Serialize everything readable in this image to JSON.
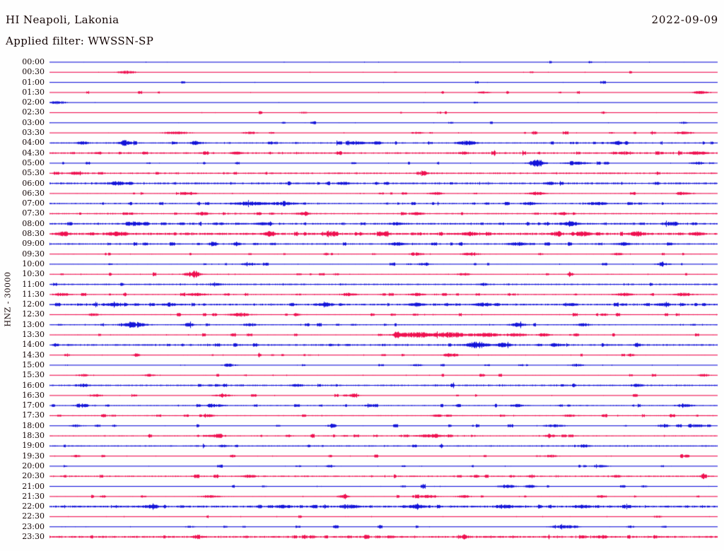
{
  "header": {
    "title": "HI Neapoli, Lakonia",
    "filter": "Applied filter: WWSSN-SP",
    "date": "2022-09-09"
  },
  "chart_data": {
    "type": "line",
    "subtype": "helicorder-dayplot",
    "title": "HI Neapoli, Lakonia",
    "applied_filter": "WWSSN-SP",
    "date": "2022-09-09",
    "channel_label": "HNZ - 30000",
    "minutes_per_line": 30,
    "rows_per_day": 48,
    "legend_position": "none",
    "grid": false,
    "trace_colors": [
      "#1414d8",
      "#ee1050"
    ],
    "text_color": "#150505",
    "rows": [
      {
        "time": "00:00",
        "noise": 0.45,
        "busy": 0.02,
        "events": [
          [
            0.81,
            0.004,
            1.2
          ]
        ]
      },
      {
        "time": "00:30",
        "noise": 0.45,
        "busy": 0.02,
        "events": [
          [
            0.115,
            0.014,
            1.7
          ]
        ]
      },
      {
        "time": "01:00",
        "noise": 0.4,
        "busy": 0.015,
        "events": []
      },
      {
        "time": "01:30",
        "noise": 0.45,
        "busy": 0.03,
        "events": [
          [
            0.65,
            0.01,
            1.2
          ],
          [
            0.975,
            0.012,
            1.9
          ]
        ]
      },
      {
        "time": "02:00",
        "noise": 0.4,
        "busy": 0.015,
        "events": [
          [
            0.012,
            0.012,
            1.9
          ]
        ]
      },
      {
        "time": "02:30",
        "noise": 0.45,
        "busy": 0.03,
        "events": [
          [
            0.38,
            0.005,
            1.2
          ],
          [
            0.83,
            0.004,
            1.5
          ]
        ]
      },
      {
        "time": "03:00",
        "noise": 0.4,
        "busy": 0.02,
        "events": [
          [
            0.95,
            0.006,
            1.3
          ]
        ]
      },
      {
        "time": "03:30",
        "noise": 0.5,
        "busy": 0.06,
        "events": [
          [
            0.19,
            0.018,
            1.5
          ],
          [
            0.3,
            0.01,
            1.3
          ],
          [
            0.55,
            0.008,
            1.3
          ],
          [
            0.95,
            0.014,
            1.5
          ]
        ]
      },
      {
        "time": "04:00",
        "noise": 0.8,
        "busy": 0.12,
        "events": [
          [
            0.05,
            0.008,
            1.8
          ],
          [
            0.115,
            0.012,
            2.2
          ],
          [
            0.22,
            0.01,
            1.8
          ],
          [
            0.46,
            0.012,
            2.0
          ],
          [
            0.49,
            0.008,
            1.8
          ],
          [
            0.625,
            0.014,
            2.6
          ],
          [
            0.85,
            0.012,
            1.6
          ]
        ]
      },
      {
        "time": "04:30",
        "noise": 0.95,
        "busy": 0.08,
        "events": [
          [
            0.28,
            0.008,
            1.5
          ],
          [
            0.62,
            0.006,
            1.4
          ],
          [
            0.86,
            0.01,
            1.5
          ],
          [
            0.97,
            0.012,
            1.8
          ]
        ]
      },
      {
        "time": "05:00",
        "noise": 0.5,
        "busy": 0.06,
        "events": [
          [
            0.73,
            0.011,
            5.0
          ],
          [
            0.79,
            0.02,
            1.6
          ],
          [
            0.97,
            0.01,
            1.7
          ]
        ]
      },
      {
        "time": "05:30",
        "noise": 0.95,
        "busy": 0.06,
        "events": [
          [
            0.04,
            0.01,
            1.5
          ],
          [
            0.56,
            0.008,
            1.3
          ]
        ]
      },
      {
        "time": "06:00",
        "noise": 1.1,
        "busy": 0.05,
        "events": [
          [
            0.1,
            0.012,
            2.3
          ],
          [
            0.44,
            0.008,
            1.4
          ],
          [
            0.75,
            0.008,
            1.3
          ]
        ]
      },
      {
        "time": "06:30",
        "noise": 0.6,
        "busy": 0.08,
        "events": [
          [
            0.21,
            0.008,
            1.8
          ],
          [
            0.58,
            0.01,
            1.6
          ],
          [
            0.73,
            0.012,
            1.9
          ],
          [
            0.95,
            0.01,
            1.6
          ]
        ]
      },
      {
        "time": "07:00",
        "noise": 0.8,
        "busy": 0.1,
        "events": [
          [
            0.3,
            0.024,
            2.1
          ],
          [
            0.35,
            0.018,
            1.9
          ],
          [
            0.72,
            0.01,
            1.5
          ],
          [
            0.82,
            0.014,
            1.7
          ]
        ]
      },
      {
        "time": "07:30",
        "noise": 0.8,
        "busy": 0.1,
        "events": [
          [
            0.23,
            0.008,
            1.9
          ],
          [
            0.38,
            0.01,
            1.5
          ],
          [
            0.55,
            0.01,
            1.5
          ],
          [
            0.77,
            0.006,
            2.1
          ]
        ]
      },
      {
        "time": "08:00",
        "noise": 1.0,
        "busy": 0.14,
        "events": [
          [
            0.13,
            0.01,
            1.8
          ],
          [
            0.32,
            0.008,
            1.6
          ],
          [
            0.52,
            0.01,
            1.6
          ],
          [
            0.78,
            0.014,
            2.1
          ],
          [
            0.93,
            0.01,
            2.2
          ]
        ]
      },
      {
        "time": "08:30",
        "noise": 1.3,
        "busy": 0.18,
        "events": [
          [
            0.02,
            0.01,
            2.2
          ],
          [
            0.1,
            0.012,
            2.4
          ],
          [
            0.33,
            0.005,
            3.6
          ],
          [
            0.42,
            0.01,
            2.2
          ],
          [
            0.5,
            0.008,
            2.0
          ],
          [
            0.63,
            0.01,
            2.2
          ],
          [
            0.76,
            0.008,
            2.4
          ],
          [
            0.8,
            0.01,
            3.0
          ],
          [
            0.88,
            0.01,
            2.8
          ],
          [
            0.97,
            0.008,
            2.0
          ]
        ]
      },
      {
        "time": "09:00",
        "noise": 0.9,
        "busy": 0.12,
        "events": [
          [
            0.245,
            0.005,
            3.6
          ],
          [
            0.28,
            0.005,
            2.6
          ],
          [
            0.52,
            0.01,
            1.8
          ],
          [
            0.7,
            0.012,
            2.0
          ],
          [
            0.86,
            0.01,
            1.8
          ]
        ]
      },
      {
        "time": "09:30",
        "noise": 0.55,
        "busy": 0.06,
        "events": [
          [
            0.55,
            0.01,
            1.6
          ],
          [
            0.63,
            0.012,
            1.9
          ],
          [
            0.85,
            0.008,
            1.4
          ]
        ]
      },
      {
        "time": "10:00",
        "noise": 0.55,
        "busy": 0.08,
        "events": [
          [
            0.3,
            0.014,
            1.5
          ],
          [
            0.56,
            0.01,
            1.4
          ],
          [
            0.92,
            0.01,
            1.4
          ]
        ]
      },
      {
        "time": "10:30",
        "noise": 0.6,
        "busy": 0.08,
        "events": [
          [
            0.215,
            0.011,
            3.6
          ],
          [
            0.62,
            0.008,
            1.6
          ],
          [
            0.78,
            0.004,
            2.3
          ]
        ]
      },
      {
        "time": "11:00",
        "noise": 0.9,
        "busy": 0.04,
        "events": [
          [
            0.25,
            0.008,
            1.4
          ],
          [
            0.65,
            0.006,
            1.3
          ]
        ]
      },
      {
        "time": "11:30",
        "noise": 0.7,
        "busy": 0.1,
        "events": [
          [
            0.02,
            0.01,
            1.8
          ],
          [
            0.22,
            0.014,
            1.8
          ],
          [
            0.45,
            0.01,
            1.7
          ],
          [
            0.55,
            0.01,
            1.6
          ],
          [
            0.86,
            0.012,
            2.0
          ],
          [
            0.95,
            0.012,
            1.9
          ]
        ]
      },
      {
        "time": "12:00",
        "noise": 1.05,
        "busy": 0.16,
        "events": [
          [
            0.1,
            0.014,
            1.8
          ],
          [
            0.18,
            0.01,
            1.6
          ],
          [
            0.41,
            0.012,
            1.8
          ],
          [
            0.55,
            0.01,
            1.8
          ],
          [
            0.65,
            0.012,
            1.8
          ],
          [
            0.78,
            0.01,
            1.6
          ],
          [
            0.92,
            0.01,
            1.6
          ]
        ]
      },
      {
        "time": "12:30",
        "noise": 0.6,
        "busy": 0.08,
        "events": [
          [
            0.065,
            0.008,
            1.5
          ],
          [
            0.285,
            0.014,
            2.3
          ],
          [
            0.37,
            0.004,
            2.2
          ],
          [
            0.83,
            0.006,
            1.4
          ]
        ]
      },
      {
        "time": "13:00",
        "noise": 0.7,
        "busy": 0.1,
        "events": [
          [
            0.125,
            0.017,
            2.9
          ],
          [
            0.21,
            0.008,
            1.6
          ],
          [
            0.3,
            0.01,
            1.8
          ],
          [
            0.7,
            0.012,
            1.8
          ],
          [
            0.8,
            0.01,
            1.6
          ]
        ]
      },
      {
        "time": "13:30",
        "noise": 0.6,
        "busy": 0.08,
        "events": [
          [
            0.52,
            0.004,
            4.2
          ],
          [
            0.55,
            0.028,
            3.3
          ],
          [
            0.6,
            0.024,
            3.0
          ],
          [
            0.655,
            0.018,
            2.6
          ],
          [
            0.7,
            0.014,
            2.0
          ],
          [
            0.74,
            0.01,
            1.8
          ]
        ]
      },
      {
        "time": "14:00",
        "noise": 1.0,
        "busy": 0.08,
        "events": [
          [
            0.64,
            0.014,
            4.0
          ],
          [
            0.68,
            0.01,
            2.3
          ],
          [
            0.76,
            0.008,
            1.6
          ],
          [
            0.88,
            0.004,
            2.1
          ]
        ]
      },
      {
        "time": "14:30",
        "noise": 0.55,
        "busy": 0.08,
        "events": [
          [
            0.13,
            0.005,
            1.9
          ],
          [
            0.6,
            0.01,
            1.4
          ],
          [
            0.87,
            0.006,
            1.4
          ]
        ]
      },
      {
        "time": "15:00",
        "noise": 0.5,
        "busy": 0.05,
        "events": [
          [
            0.27,
            0.01,
            1.4
          ],
          [
            0.55,
            0.008,
            1.3
          ],
          [
            0.79,
            0.01,
            1.5
          ]
        ]
      },
      {
        "time": "15:30",
        "noise": 0.55,
        "busy": 0.07,
        "events": [
          [
            0.05,
            0.008,
            1.4
          ],
          [
            0.15,
            0.008,
            1.4
          ],
          [
            0.98,
            0.008,
            1.4
          ]
        ]
      },
      {
        "time": "16:00",
        "noise": 0.9,
        "busy": 0.05,
        "events": [
          [
            0.05,
            0.008,
            1.7
          ],
          [
            0.37,
            0.008,
            1.3
          ],
          [
            0.88,
            0.008,
            1.4
          ]
        ]
      },
      {
        "time": "16:30",
        "noise": 0.5,
        "busy": 0.06,
        "events": [
          [
            0.07,
            0.01,
            1.4
          ],
          [
            0.26,
            0.012,
            1.6
          ],
          [
            0.455,
            0.007,
            2.5
          ]
        ]
      },
      {
        "time": "17:00",
        "noise": 0.7,
        "busy": 0.1,
        "events": [
          [
            0.05,
            0.01,
            1.5
          ],
          [
            0.25,
            0.012,
            1.6
          ],
          [
            0.48,
            0.008,
            1.5
          ],
          [
            0.7,
            0.01,
            1.5
          ],
          [
            0.95,
            0.012,
            1.9
          ]
        ]
      },
      {
        "time": "17:30",
        "noise": 0.65,
        "busy": 0.05,
        "events": [
          [
            0.24,
            0.006,
            1.3
          ],
          [
            0.58,
            0.008,
            1.3
          ],
          [
            0.78,
            0.008,
            1.4
          ]
        ]
      },
      {
        "time": "18:00",
        "noise": 0.5,
        "busy": 0.07,
        "events": [
          [
            0.04,
            0.008,
            1.4
          ],
          [
            0.42,
            0.006,
            1.4
          ],
          [
            0.755,
            0.014,
            1.9
          ],
          [
            0.92,
            0.008,
            1.9
          ],
          [
            0.97,
            0.012,
            1.9
          ]
        ]
      },
      {
        "time": "18:30",
        "noise": 0.7,
        "busy": 0.09,
        "events": [
          [
            0.25,
            0.012,
            1.6
          ],
          [
            0.57,
            0.02,
            1.9
          ],
          [
            0.75,
            0.008,
            1.4
          ]
        ]
      },
      {
        "time": "19:00",
        "noise": 0.8,
        "busy": 0.04,
        "events": [
          [
            0.26,
            0.006,
            1.3
          ],
          [
            0.8,
            0.008,
            1.7
          ]
        ]
      },
      {
        "time": "19:30",
        "noise": 0.5,
        "busy": 0.04,
        "events": [
          [
            0.04,
            0.006,
            1.3
          ],
          [
            0.75,
            0.01,
            1.7
          ],
          [
            0.95,
            0.006,
            1.4
          ]
        ]
      },
      {
        "time": "20:00",
        "noise": 0.5,
        "busy": 0.04,
        "events": [
          [
            0.42,
            0.006,
            1.4
          ],
          [
            0.825,
            0.012,
            1.5
          ]
        ]
      },
      {
        "time": "20:30",
        "noise": 0.85,
        "busy": 0.08,
        "events": [
          [
            0.3,
            0.01,
            1.4
          ],
          [
            0.85,
            0.006,
            1.4
          ],
          [
            0.98,
            0.004,
            1.9
          ]
        ]
      },
      {
        "time": "21:00",
        "noise": 0.5,
        "busy": 0.05,
        "events": [
          [
            0.53,
            0.004,
            1.5
          ],
          [
            0.685,
            0.012,
            2.1
          ],
          [
            0.72,
            0.008,
            1.9
          ],
          [
            0.89,
            0.004,
            1.3
          ]
        ]
      },
      {
        "time": "21:30",
        "noise": 0.55,
        "busy": 0.07,
        "events": [
          [
            0.08,
            0.004,
            1.3
          ],
          [
            0.24,
            0.014,
            1.5
          ],
          [
            0.44,
            0.007,
            2.3
          ],
          [
            0.565,
            0.014,
            1.9
          ],
          [
            0.62,
            0.01,
            1.5
          ],
          [
            0.83,
            0.005,
            1.3
          ]
        ]
      },
      {
        "time": "22:00",
        "noise": 1.2,
        "busy": 0.14,
        "events": [
          [
            0.15,
            0.01,
            1.6
          ],
          [
            0.35,
            0.01,
            1.8
          ],
          [
            0.45,
            0.012,
            2.0
          ],
          [
            0.55,
            0.012,
            2.0
          ],
          [
            0.68,
            0.012,
            1.8
          ],
          [
            0.8,
            0.01,
            1.6
          ]
        ]
      },
      {
        "time": "22:30",
        "noise": 0.5,
        "busy": 0.03,
        "events": [
          [
            0.91,
            0.005,
            1.7
          ]
        ]
      },
      {
        "time": "23:00",
        "noise": 0.5,
        "busy": 0.04,
        "events": [
          [
            0.21,
            0.006,
            1.3
          ],
          [
            0.77,
            0.016,
            2.3
          ],
          [
            0.87,
            0.005,
            1.3
          ]
        ]
      },
      {
        "time": "23:30",
        "noise": 1.15,
        "busy": 0.1,
        "events": [
          [
            0.22,
            0.008,
            1.5
          ],
          [
            0.51,
            0.006,
            1.4
          ],
          [
            0.62,
            0.008,
            1.5
          ],
          [
            0.83,
            0.006,
            1.5
          ]
        ]
      }
    ]
  }
}
